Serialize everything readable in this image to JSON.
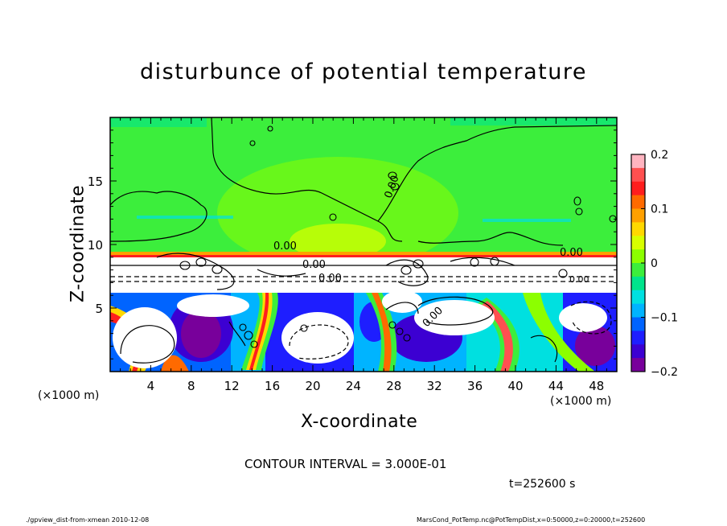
{
  "chart_data": {
    "type": "heatmap",
    "title": "disturbunce of potential temperature",
    "xlabel": "X-coordinate",
    "ylabel": "Z-coordinate",
    "x_unit": "(×1000 m)",
    "xlim": [
      0,
      50
    ],
    "ylim": [
      0,
      20
    ],
    "x_ticks": [
      4,
      8,
      12,
      16,
      20,
      24,
      28,
      32,
      36,
      40,
      44,
      48
    ],
    "y_ticks": [
      5,
      10,
      15
    ],
    "colorbar": {
      "range": [
        -0.2,
        0.2
      ],
      "tick_values": [
        0.2,
        0.1,
        0,
        -0.1,
        -0.2
      ],
      "tick_labels": [
        "0.2",
        "0.1",
        "0",
        "−0.1",
        "−0.2"
      ],
      "colors": [
        "#ffb4c0",
        "#ff5050",
        "#ff1e1e",
        "#ff6a00",
        "#ffa000",
        "#ffd800",
        "#d8ff00",
        "#8cff00",
        "#3cee3c",
        "#00e48c",
        "#00e0e0",
        "#00b4ff",
        "#0064ff",
        "#1e1eff",
        "#3c00d2",
        "#78009b"
      ]
    },
    "contour_labels": [
      "0.00",
      "0.00",
      "0.00",
      "0.00",
      "0.00",
      "0.00",
      "0.00"
    ],
    "contour_interval": "CONTOUR INTERVAL = 3.000E-01",
    "time": "t=252600 s",
    "grid": false
  },
  "footer": {
    "left": "./gpview_dist-from-xmean  2010-12-08",
    "right": "MarsCond_PotTemp.nc@PotTempDist,x=0:50000,z=0:20000,t=252600"
  }
}
